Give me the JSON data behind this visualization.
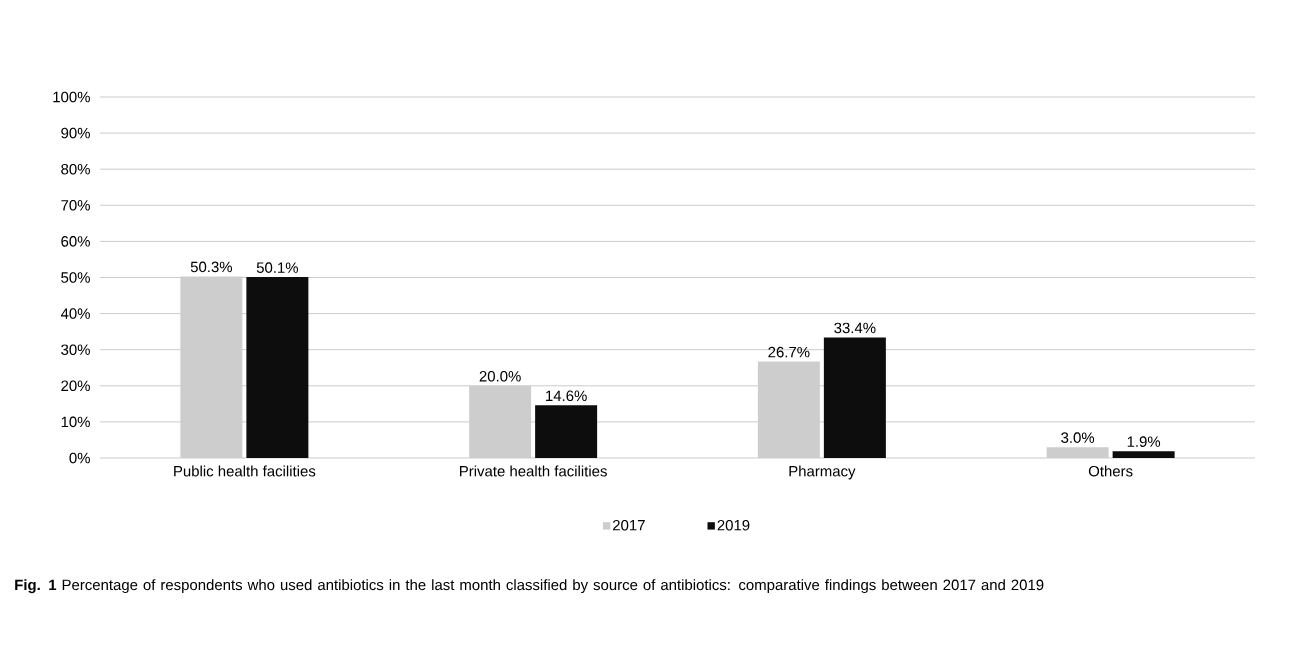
{
  "chart_data": {
    "type": "bar",
    "categories": [
      "Public health facilities",
      "Private health facilities",
      "Pharmacy",
      "Others"
    ],
    "series": [
      {
        "name": "2017",
        "color": "#cdcdcd",
        "values": [
          50.3,
          20.0,
          26.7,
          3.0
        ],
        "value_labels": [
          "50.3%",
          "20.0%",
          "26.7%",
          "3.0%"
        ]
      },
      {
        "name": "2019",
        "color": "#0d0d0d",
        "values": [
          50.1,
          14.6,
          33.4,
          1.9
        ],
        "value_labels": [
          "50.1%",
          "14.6%",
          "33.4%",
          "1.9%"
        ]
      }
    ],
    "ylim": [
      0,
      100
    ],
    "yticks": [
      {
        "value": 0,
        "label": "0%"
      },
      {
        "value": 10,
        "label": "10%"
      },
      {
        "value": 20,
        "label": "20%"
      },
      {
        "value": 30,
        "label": "30%"
      },
      {
        "value": 40,
        "label": "40%"
      },
      {
        "value": 50,
        "label": "50%"
      },
      {
        "value": 60,
        "label": "60%"
      },
      {
        "value": 70,
        "label": "70%"
      },
      {
        "value": 80,
        "label": "80%"
      },
      {
        "value": 90,
        "label": "90%"
      },
      {
        "value": 100,
        "label": "100%"
      }
    ],
    "grid": "y",
    "legend": "bottom",
    "annotations": [
      "**Fig. 1** Percentage of respondents who used antibiotics in the last month classified by source of antibiotics: comparative findings between 2017 and 2019"
    ]
  }
}
